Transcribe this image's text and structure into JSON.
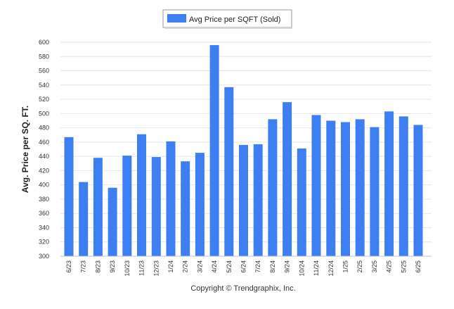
{
  "chart_data": {
    "type": "bar",
    "ylabel": "Avg. Price per SQ. FT.",
    "xlabel": "",
    "ylim": [
      300,
      600
    ],
    "yticks": [
      300,
      320,
      340,
      360,
      380,
      400,
      420,
      440,
      460,
      480,
      500,
      520,
      540,
      560,
      580,
      600
    ],
    "grid": true,
    "legend_position": "top-center",
    "categories": [
      "6/23",
      "7/23",
      "8/23",
      "9/23",
      "10/23",
      "11/23",
      "12/23",
      "1/24",
      "2/24",
      "3/24",
      "4/24",
      "5/24",
      "6/24",
      "7/24",
      "8/24",
      "9/24",
      "10/24",
      "11/24",
      "12/24",
      "1/25",
      "2/25",
      "3/25",
      "4/25",
      "5/25",
      "6/25"
    ],
    "series": [
      {
        "name": "Avg Price per SQFT (Sold)",
        "color": "#3d7ef0",
        "values": [
          467,
          404,
          438,
          396,
          441,
          471,
          439,
          461,
          433,
          445,
          596,
          537,
          456,
          457,
          492,
          516,
          451,
          498,
          490,
          488,
          492,
          481,
          503,
          496,
          484
        ]
      }
    ]
  },
  "footer": {
    "copyright": "Copyright © Trendgraphix, Inc."
  }
}
